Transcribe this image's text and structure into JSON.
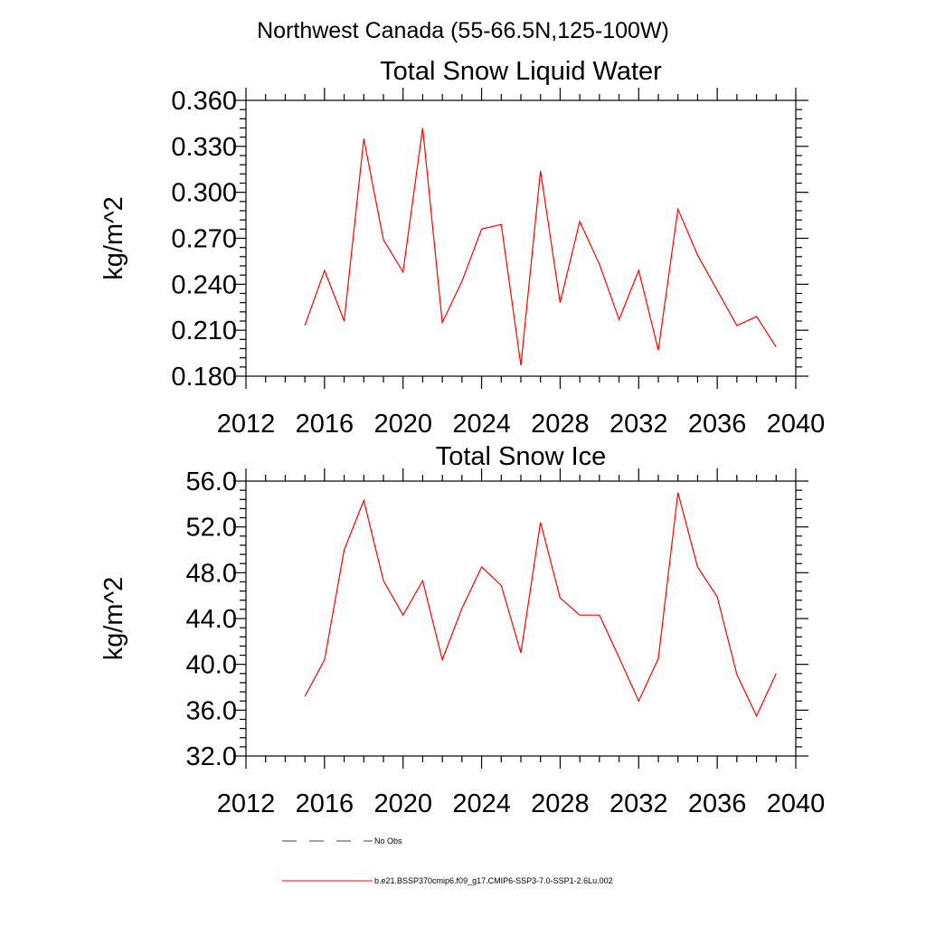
{
  "figure": {
    "suptitle": "Northwest Canada (55-66.5N,125-100W)",
    "legend": [
      {
        "label": "No Obs",
        "color": "#3a3a8c",
        "dash": "dashed"
      },
      {
        "label": "b.e21.BSSP370cmip6.f09_g17.CMIP6-SSP3-7.0-SSP1-2.6Lu.002",
        "color": "#ff0000",
        "dash": "solid"
      }
    ]
  },
  "chart_data": [
    {
      "type": "line",
      "title": "Total Snow Liquid Water",
      "xlabel": "",
      "ylabel": "kg/m^2",
      "xlim": [
        2012,
        2040
      ],
      "ylim": [
        0.18,
        0.36
      ],
      "xticks": [
        2012,
        2016,
        2020,
        2024,
        2028,
        2032,
        2036,
        2040
      ],
      "xtick_labels": [
        "2012",
        "2016",
        "2020",
        "2024",
        "2028",
        "2032",
        "2036",
        "2040"
      ],
      "yticks": [
        0.18,
        0.21,
        0.24,
        0.27,
        0.3,
        0.33,
        0.36
      ],
      "ytick_labels": [
        "0.180",
        "0.210",
        "0.240",
        "0.270",
        "0.300",
        "0.330",
        "0.360"
      ],
      "grid": false,
      "series": [
        {
          "color": "#ff0000",
          "x": [
            2015,
            2016,
            2017,
            2018,
            2019,
            2020,
            2021,
            2022,
            2023,
            2024,
            2025,
            2026,
            2027,
            2028,
            2029,
            2030,
            2031,
            2032,
            2033,
            2034,
            2035,
            2036,
            2037,
            2038,
            2039
          ],
          "y": [
            0.213,
            0.249,
            0.216,
            0.335,
            0.269,
            0.248,
            0.342,
            0.215,
            0.242,
            0.276,
            0.279,
            0.187,
            0.314,
            0.228,
            0.281,
            0.253,
            0.217,
            0.249,
            0.197,
            0.289,
            0.259,
            0.236,
            0.213,
            0.219,
            0.199
          ]
        }
      ]
    },
    {
      "type": "line",
      "title": "Total Snow Ice",
      "xlabel": "",
      "ylabel": "kg/m^2",
      "xlim": [
        2012,
        2040
      ],
      "ylim": [
        32,
        56
      ],
      "xticks": [
        2012,
        2016,
        2020,
        2024,
        2028,
        2032,
        2036,
        2040
      ],
      "xtick_labels": [
        "2012",
        "2016",
        "2020",
        "2024",
        "2028",
        "2032",
        "2036",
        "2040"
      ],
      "yticks": [
        32,
        36,
        40,
        44,
        48,
        52,
        56
      ],
      "ytick_labels": [
        "32.0",
        "36.0",
        "40.0",
        "44.0",
        "48.0",
        "52.0",
        "56.0"
      ],
      "grid": false,
      "series": [
        {
          "color": "#ff0000",
          "x": [
            2015,
            2016,
            2017,
            2018,
            2019,
            2020,
            2021,
            2022,
            2023,
            2024,
            2025,
            2026,
            2027,
            2028,
            2029,
            2030,
            2031,
            2032,
            2033,
            2034,
            2035,
            2036,
            2037,
            2038,
            2039
          ],
          "y": [
            37.2,
            40.4,
            50.0,
            54.3,
            47.3,
            44.3,
            47.3,
            40.4,
            44.9,
            48.5,
            46.9,
            41.0,
            52.4,
            45.8,
            44.3,
            44.3,
            40.6,
            36.8,
            40.5,
            55.0,
            48.5,
            45.9,
            39.1,
            35.5,
            39.2
          ]
        }
      ]
    }
  ]
}
